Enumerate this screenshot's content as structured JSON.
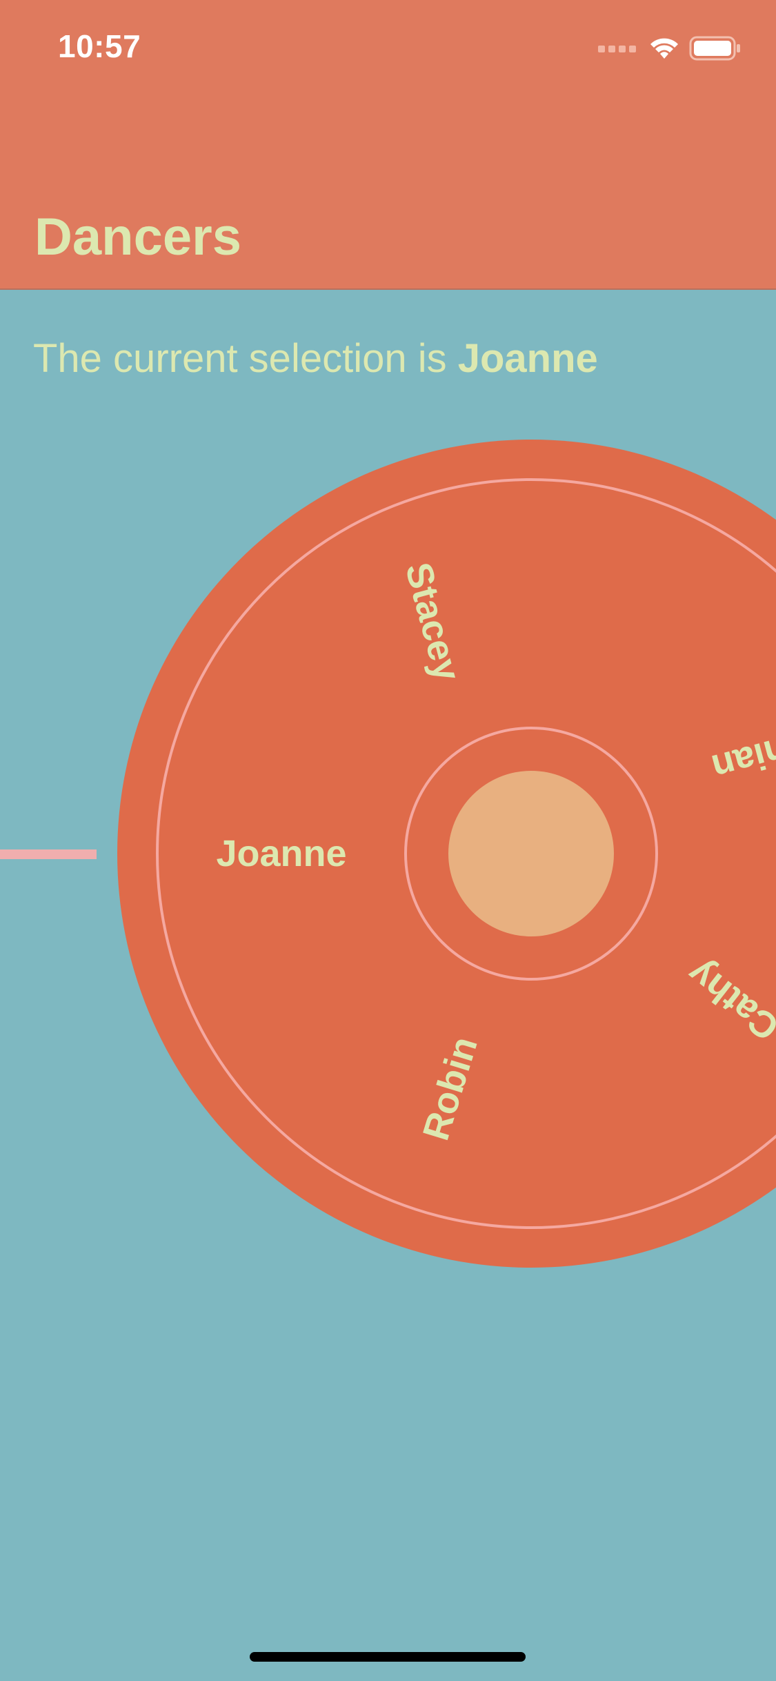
{
  "status_bar": {
    "time": "10:57",
    "icons": [
      "signal-icon",
      "wifi-icon",
      "battery-icon"
    ]
  },
  "nav": {
    "title": "Dancers"
  },
  "selection": {
    "prefix": "The current selection is ",
    "value": "Joanne"
  },
  "wheel": {
    "labels": [
      "Stacey",
      "Rhian",
      "Joanne",
      "Cathy",
      "Robin"
    ],
    "colors": {
      "disc": "#DF6B4A",
      "ring": "#F5A8A0",
      "hub": "#E8B080",
      "pointer": "#F0AEAE",
      "label": "#DCE8B0"
    }
  },
  "colors": {
    "header": "#DF7A5E",
    "background": "#7EB8C1",
    "title": "#DCE8B0"
  }
}
